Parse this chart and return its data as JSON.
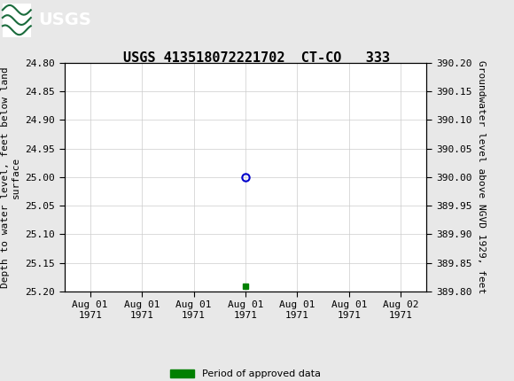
{
  "title": "USGS 413518072221702  CT-CO   333",
  "ylabel_left": "Depth to water level, feet below land\nsurface",
  "ylabel_right": "Groundwater level above NGVD 1929, feet",
  "ylim_left": [
    25.2,
    24.8
  ],
  "ylim_right": [
    389.8,
    390.2
  ],
  "yticks_left": [
    24.8,
    24.85,
    24.9,
    24.95,
    25.0,
    25.05,
    25.1,
    25.15,
    25.2
  ],
  "yticks_right": [
    390.2,
    390.15,
    390.1,
    390.05,
    390.0,
    389.95,
    389.9,
    389.85,
    389.8
  ],
  "data_point_x": 3.0,
  "data_point_y": 25.0,
  "approved_point_x": 3.0,
  "approved_point_y": 25.19,
  "xtick_labels": [
    "Aug 01\n1971",
    "Aug 01\n1971",
    "Aug 01\n1971",
    "Aug 01\n1971",
    "Aug 01\n1971",
    "Aug 01\n1971",
    "Aug 02\n1971"
  ],
  "xtick_positions": [
    0,
    1,
    2,
    3,
    4,
    5,
    6
  ],
  "xlim": [
    -0.5,
    6.5
  ],
  "grid_color": "#cccccc",
  "plot_bg_color": "#ffffff",
  "outer_bg_color": "#e8e8e8",
  "header_bg_color": "#1a6b3c",
  "header_text_color": "#ffffff",
  "open_circle_color": "#0000cc",
  "approved_square_color": "#008000",
  "legend_label": "Period of approved data",
  "title_fontsize": 11,
  "axis_label_fontsize": 8,
  "tick_fontsize": 8,
  "font_family": "monospace"
}
